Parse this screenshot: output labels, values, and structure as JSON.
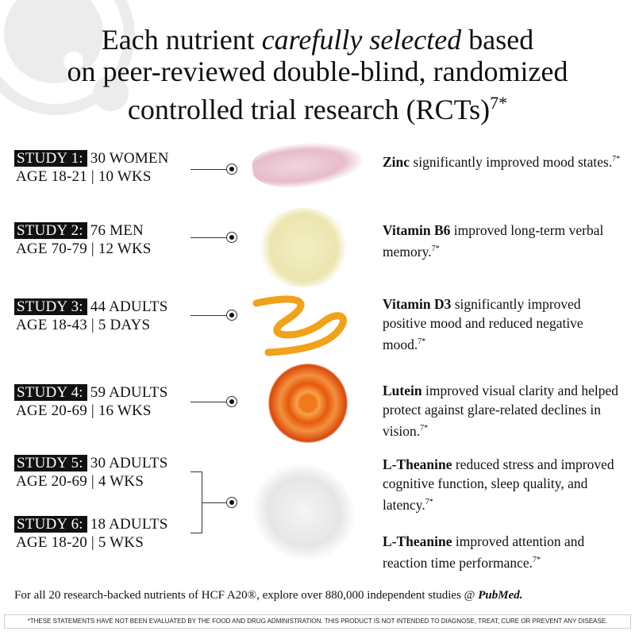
{
  "title": {
    "line1_pre": "Each nutrient ",
    "line1_em": "carefully selected",
    "line1_post": " based",
    "line2": "on peer-reviewed double-blind, randomized",
    "line3": "controlled trial research (RCTs)",
    "line3_sup": "7*"
  },
  "studies": [
    {
      "tag": "STUDY 1:",
      "subject": "30 WOMEN",
      "detail": "AGE 18-21 | 10 WKS"
    },
    {
      "tag": "STUDY 2:",
      "subject": "76 MEN",
      "detail": "AGE 70-79 | 12 WKS"
    },
    {
      "tag": "STUDY 3:",
      "subject": "44 ADULTS",
      "detail": "AGE 18-43 | 5 DAYS"
    },
    {
      "tag": "STUDY 4:",
      "subject": "59 ADULTS",
      "detail": "AGE 20-69 | 16 WKS"
    },
    {
      "tag": "STUDY 5:",
      "subject": "30 ADULTS",
      "detail": "AGE 20-69 | 4 WKS"
    },
    {
      "tag": "STUDY 6:",
      "subject": "18 ADULTS",
      "detail": "AGE 18-20 | 5 WKS"
    }
  ],
  "findings": [
    {
      "nutrient": "Zinc",
      "text": " significantly improved mood states.",
      "sup": "7*"
    },
    {
      "nutrient": "Vitamin B6",
      "text": " improved long-term verbal memory.",
      "sup": "7*"
    },
    {
      "nutrient": "Vitamin D3",
      "text": " significantly improved positive mood and reduced negative mood.",
      "sup": "7*"
    },
    {
      "nutrient": "Lutein",
      "text": " improved visual clarity and helped protect against glare-related declines in vision.",
      "sup": "7*"
    },
    {
      "nutrient": "L-Theanine",
      "text": " reduced stress and improved cognitive function, sleep quality, and latency.",
      "sup": "7*"
    },
    {
      "nutrient": "L-Theanine",
      "text": " improved attention and reaction time performance.",
      "sup": "7*"
    }
  ],
  "footer": {
    "text": "For all 20 research-backed nutrients of HCF A20®, explore over 880,000 independent studies @ ",
    "link": "PubMed."
  },
  "disclaimer": "*THESE STATEMENTS HAVE NOT BEEN EVALUATED BY THE FOOD AND DRUG ADMINISTRATION. THIS PRODUCT IS NOT INTENDED TO DIAGNOSE, TREAT, CURE OR PREVENT ANY DISEASE."
}
